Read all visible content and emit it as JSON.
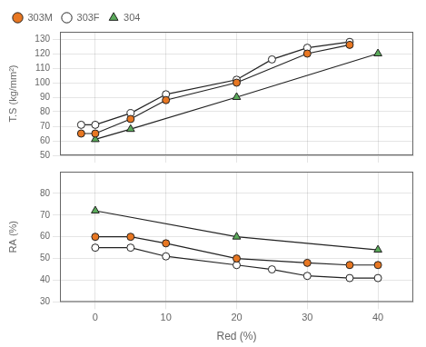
{
  "chart_data": [
    {
      "type": "line",
      "ylabel": "T.S (kg/mm²)",
      "xlim": [
        -5,
        45
      ],
      "xticks": [
        0,
        10,
        20,
        30,
        40
      ],
      "ylim": [
        50,
        135
      ],
      "yticks": [
        50,
        60,
        70,
        80,
        90,
        100,
        110,
        120,
        130
      ],
      "grid": true,
      "legend": "upper left",
      "tick_labels": "y",
      "series": [
        {
          "name": "303M",
          "color": "#E87722",
          "marker": "circle",
          "x": [
            -2,
            0,
            5,
            10,
            20,
            30,
            36
          ],
          "values": [
            65,
            65,
            75,
            88,
            100,
            120,
            126
          ]
        },
        {
          "name": "303F",
          "color": "#ffffff",
          "marker": "circle",
          "x": [
            -2,
            0,
            5,
            10,
            20,
            25,
            30,
            36
          ],
          "values": [
            71,
            71,
            79,
            92,
            102,
            116,
            124,
            128
          ]
        },
        {
          "name": "304",
          "color": "#5aaa5a",
          "marker": "triangle",
          "x": [
            0,
            5,
            20,
            40
          ],
          "values": [
            61,
            68,
            90,
            120
          ]
        }
      ]
    },
    {
      "type": "line",
      "xlabel": "Red (%)",
      "ylabel": "RA (%)",
      "xlim": [
        -5,
        45
      ],
      "xticks": [
        0,
        10,
        20,
        30,
        40
      ],
      "ylim": [
        30,
        90
      ],
      "yticks": [
        30,
        40,
        50,
        60,
        70,
        80
      ],
      "grid": true,
      "series": [
        {
          "name": "303M",
          "color": "#E87722",
          "marker": "circle",
          "x": [
            0,
            5,
            10,
            20,
            30,
            36,
            40
          ],
          "values": [
            60,
            60,
            57,
            50,
            48,
            47,
            47
          ]
        },
        {
          "name": "303F",
          "color": "#ffffff",
          "marker": "circle",
          "x": [
            0,
            5,
            10,
            20,
            25,
            30,
            36,
            40
          ],
          "values": [
            55,
            55,
            51,
            47,
            45,
            42,
            41,
            41
          ]
        },
        {
          "name": "304",
          "color": "#5aaa5a",
          "marker": "triangle",
          "x": [
            0,
            20,
            40
          ],
          "values": [
            72,
            60,
            54
          ]
        }
      ]
    }
  ]
}
